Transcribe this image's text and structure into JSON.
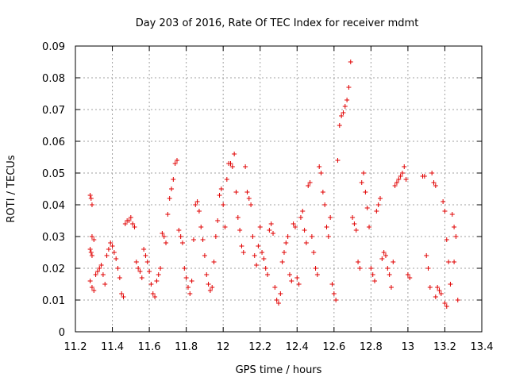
{
  "chart_data": {
    "type": "scatter",
    "title": "Day 203 of 2016, Rate Of TEC Index for receiver mdmt",
    "xlabel": "GPS time / hours",
    "ylabel": "ROTI / TECUs",
    "xlim": [
      11.2,
      13.4
    ],
    "ylim": [
      0,
      0.09
    ],
    "xticks": [
      "11.2",
      "11.4",
      "11.6",
      "11.8",
      "12",
      "12.2",
      "12.4",
      "12.6",
      "12.8",
      "13",
      "13.2",
      "13.4"
    ],
    "yticks": [
      "0",
      "0.01",
      "0.02",
      "0.03",
      "0.04",
      "0.05",
      "0.06",
      "0.07",
      "0.08",
      "0.09"
    ],
    "grid": true,
    "marker": "+",
    "color": "#e00000",
    "series": [
      {
        "name": "ROTI",
        "points": [
          [
            11.28,
            0.043
          ],
          [
            11.285,
            0.042
          ],
          [
            11.29,
            0.04
          ],
          [
            11.28,
            0.026
          ],
          [
            11.285,
            0.025
          ],
          [
            11.29,
            0.03
          ],
          [
            11.3,
            0.029
          ],
          [
            11.29,
            0.024
          ],
          [
            11.28,
            0.016
          ],
          [
            11.29,
            0.014
          ],
          [
            11.3,
            0.013
          ],
          [
            11.31,
            0.018
          ],
          [
            11.32,
            0.019
          ],
          [
            11.33,
            0.02
          ],
          [
            11.34,
            0.021
          ],
          [
            11.35,
            0.018
          ],
          [
            11.36,
            0.015
          ],
          [
            11.37,
            0.024
          ],
          [
            11.38,
            0.026
          ],
          [
            11.39,
            0.028
          ],
          [
            11.4,
            0.027
          ],
          [
            11.41,
            0.025
          ],
          [
            11.42,
            0.023
          ],
          [
            11.43,
            0.02
          ],
          [
            11.44,
            0.017
          ],
          [
            11.45,
            0.012
          ],
          [
            11.46,
            0.011
          ],
          [
            11.47,
            0.034
          ],
          [
            11.48,
            0.035
          ],
          [
            11.49,
            0.035
          ],
          [
            11.5,
            0.036
          ],
          [
            11.51,
            0.034
          ],
          [
            11.52,
            0.033
          ],
          [
            11.53,
            0.022
          ],
          [
            11.54,
            0.02
          ],
          [
            11.55,
            0.019
          ],
          [
            11.56,
            0.017
          ],
          [
            11.57,
            0.026
          ],
          [
            11.58,
            0.024
          ],
          [
            11.59,
            0.022
          ],
          [
            11.6,
            0.019
          ],
          [
            11.61,
            0.015
          ],
          [
            11.62,
            0.012
          ],
          [
            11.63,
            0.011
          ],
          [
            11.64,
            0.016
          ],
          [
            11.65,
            0.018
          ],
          [
            11.66,
            0.02
          ],
          [
            11.67,
            0.031
          ],
          [
            11.68,
            0.03
          ],
          [
            11.69,
            0.028
          ],
          [
            11.7,
            0.037
          ],
          [
            11.71,
            0.042
          ],
          [
            11.72,
            0.045
          ],
          [
            11.73,
            0.048
          ],
          [
            11.74,
            0.053
          ],
          [
            11.75,
            0.054
          ],
          [
            11.76,
            0.032
          ],
          [
            11.77,
            0.03
          ],
          [
            11.78,
            0.028
          ],
          [
            11.79,
            0.02
          ],
          [
            11.8,
            0.017
          ],
          [
            11.81,
            0.014
          ],
          [
            11.82,
            0.012
          ],
          [
            11.83,
            0.016
          ],
          [
            11.84,
            0.029
          ],
          [
            11.85,
            0.04
          ],
          [
            11.86,
            0.041
          ],
          [
            11.87,
            0.038
          ],
          [
            11.88,
            0.033
          ],
          [
            11.89,
            0.029
          ],
          [
            11.9,
            0.024
          ],
          [
            11.91,
            0.018
          ],
          [
            11.92,
            0.015
          ],
          [
            11.93,
            0.013
          ],
          [
            11.94,
            0.014
          ],
          [
            11.95,
            0.022
          ],
          [
            11.96,
            0.03
          ],
          [
            11.97,
            0.035
          ],
          [
            11.98,
            0.043
          ],
          [
            11.99,
            0.045
          ],
          [
            12.0,
            0.04
          ],
          [
            12.01,
            0.033
          ],
          [
            12.02,
            0.048
          ],
          [
            12.03,
            0.053
          ],
          [
            12.04,
            0.053
          ],
          [
            12.05,
            0.052
          ],
          [
            12.06,
            0.056
          ],
          [
            12.07,
            0.044
          ],
          [
            12.08,
            0.036
          ],
          [
            12.09,
            0.032
          ],
          [
            12.1,
            0.027
          ],
          [
            12.11,
            0.025
          ],
          [
            12.12,
            0.052
          ],
          [
            12.13,
            0.044
          ],
          [
            12.14,
            0.042
          ],
          [
            12.15,
            0.04
          ],
          [
            12.16,
            0.03
          ],
          [
            12.17,
            0.024
          ],
          [
            12.18,
            0.021
          ],
          [
            12.19,
            0.027
          ],
          [
            12.2,
            0.033
          ],
          [
            12.21,
            0.025
          ],
          [
            12.22,
            0.023
          ],
          [
            12.23,
            0.02
          ],
          [
            12.24,
            0.018
          ],
          [
            12.25,
            0.032
          ],
          [
            12.26,
            0.034
          ],
          [
            12.27,
            0.031
          ],
          [
            12.28,
            0.014
          ],
          [
            12.29,
            0.01
          ],
          [
            12.3,
            0.009
          ],
          [
            12.31,
            0.012
          ],
          [
            12.32,
            0.022
          ],
          [
            12.33,
            0.025
          ],
          [
            12.34,
            0.028
          ],
          [
            12.35,
            0.03
          ],
          [
            12.36,
            0.018
          ],
          [
            12.37,
            0.016
          ],
          [
            12.38,
            0.034
          ],
          [
            12.39,
            0.033
          ],
          [
            12.4,
            0.017
          ],
          [
            12.41,
            0.015
          ],
          [
            12.42,
            0.036
          ],
          [
            12.43,
            0.038
          ],
          [
            12.44,
            0.032
          ],
          [
            12.45,
            0.028
          ],
          [
            12.46,
            0.046
          ],
          [
            12.47,
            0.047
          ],
          [
            12.48,
            0.03
          ],
          [
            12.49,
            0.025
          ],
          [
            12.5,
            0.02
          ],
          [
            12.51,
            0.018
          ],
          [
            12.52,
            0.052
          ],
          [
            12.53,
            0.05
          ],
          [
            12.54,
            0.044
          ],
          [
            12.55,
            0.04
          ],
          [
            12.56,
            0.033
          ],
          [
            12.57,
            0.03
          ],
          [
            12.58,
            0.036
          ],
          [
            12.59,
            0.015
          ],
          [
            12.6,
            0.012
          ],
          [
            12.61,
            0.01
          ],
          [
            12.62,
            0.054
          ],
          [
            12.63,
            0.065
          ],
          [
            12.64,
            0.068
          ],
          [
            12.65,
            0.069
          ],
          [
            12.66,
            0.071
          ],
          [
            12.67,
            0.073
          ],
          [
            12.68,
            0.077
          ],
          [
            12.69,
            0.085
          ],
          [
            12.7,
            0.036
          ],
          [
            12.71,
            0.034
          ],
          [
            12.72,
            0.032
          ],
          [
            12.73,
            0.022
          ],
          [
            12.74,
            0.02
          ],
          [
            12.75,
            0.047
          ],
          [
            12.76,
            0.05
          ],
          [
            12.77,
            0.044
          ],
          [
            12.78,
            0.039
          ],
          [
            12.79,
            0.033
          ],
          [
            12.8,
            0.02
          ],
          [
            12.81,
            0.018
          ],
          [
            12.82,
            0.016
          ],
          [
            12.83,
            0.038
          ],
          [
            12.84,
            0.04
          ],
          [
            12.85,
            0.042
          ],
          [
            12.86,
            0.023
          ],
          [
            12.87,
            0.025
          ],
          [
            12.88,
            0.024
          ],
          [
            12.89,
            0.02
          ],
          [
            12.9,
            0.018
          ],
          [
            12.91,
            0.014
          ],
          [
            12.92,
            0.022
          ],
          [
            12.93,
            0.046
          ],
          [
            12.94,
            0.047
          ],
          [
            12.95,
            0.048
          ],
          [
            12.96,
            0.049
          ],
          [
            12.97,
            0.05
          ],
          [
            12.98,
            0.052
          ],
          [
            12.99,
            0.048
          ],
          [
            13.0,
            0.018
          ],
          [
            13.01,
            0.017
          ],
          [
            13.08,
            0.049
          ],
          [
            13.09,
            0.049
          ],
          [
            13.1,
            0.024
          ],
          [
            13.11,
            0.02
          ],
          [
            13.12,
            0.014
          ],
          [
            13.13,
            0.05
          ],
          [
            13.14,
            0.047
          ],
          [
            13.15,
            0.046
          ],
          [
            13.16,
            0.014
          ],
          [
            13.17,
            0.013
          ],
          [
            13.18,
            0.012
          ],
          [
            13.19,
            0.041
          ],
          [
            13.2,
            0.038
          ],
          [
            13.21,
            0.029
          ],
          [
            13.22,
            0.022
          ],
          [
            13.23,
            0.015
          ],
          [
            13.24,
            0.037
          ],
          [
            13.25,
            0.033
          ],
          [
            13.26,
            0.03
          ],
          [
            13.27,
            0.01
          ],
          [
            13.2,
            0.009
          ],
          [
            13.21,
            0.008
          ],
          [
            13.15,
            0.011
          ],
          [
            13.25,
            0.022
          ]
        ]
      }
    ]
  }
}
